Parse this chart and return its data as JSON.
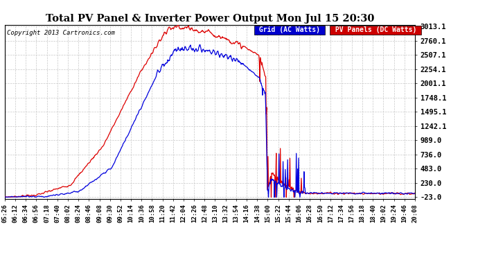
{
  "title": "Total PV Panel & Inverter Power Output Mon Jul 15 20:30",
  "copyright": "Copyright 2013 Cartronics.com",
  "legend_blue": "Grid (AC Watts)",
  "legend_red": "PV Panels (DC Watts)",
  "yticks": [
    -23.0,
    230.0,
    483.0,
    736.0,
    989.0,
    1242.1,
    1495.1,
    1748.1,
    2001.1,
    2254.1,
    2507.1,
    2760.1,
    3013.1
  ],
  "ymin": -23.0,
  "ymax": 3013.1,
  "background_color": "#ffffff",
  "grid_color": "#c8c8c8",
  "title_color": "#000000",
  "blue_color": "#0000dd",
  "red_color": "#dd0000",
  "legend_blue_bg": "#0000cc",
  "legend_red_bg": "#cc0000",
  "n_points": 900,
  "x_tick_labels": [
    "05:26",
    "06:12",
    "06:34",
    "06:56",
    "07:18",
    "07:40",
    "08:02",
    "08:24",
    "08:46",
    "09:08",
    "09:30",
    "09:52",
    "10:14",
    "10:36",
    "10:58",
    "11:20",
    "11:42",
    "12:04",
    "12:26",
    "12:48",
    "13:10",
    "13:32",
    "13:54",
    "14:16",
    "14:38",
    "15:00",
    "15:22",
    "15:44",
    "16:06",
    "16:28",
    "16:50",
    "17:12",
    "17:34",
    "17:56",
    "18:18",
    "18:40",
    "19:02",
    "19:24",
    "19:46",
    "20:08"
  ]
}
